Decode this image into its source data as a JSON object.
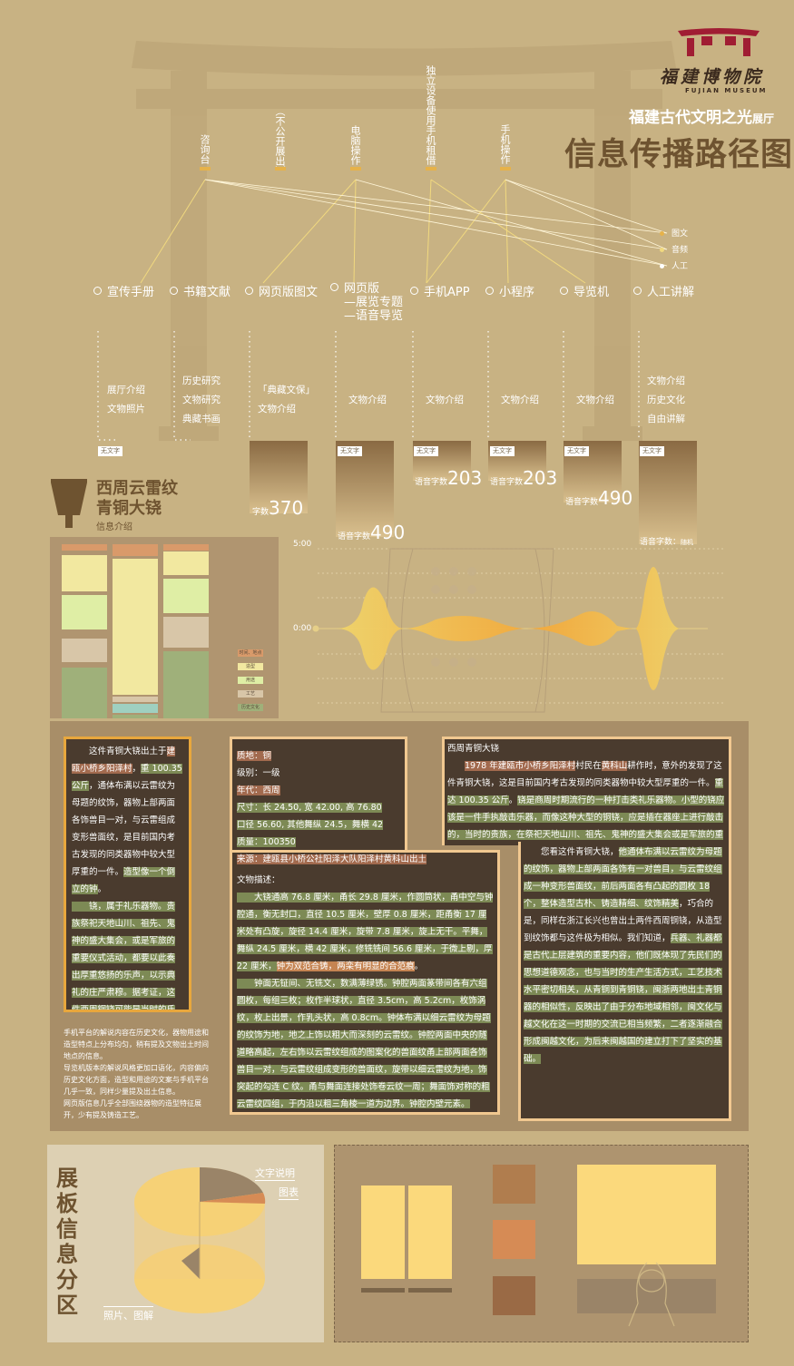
{
  "brand": {
    "logo_cn": "福建博物院",
    "logo_en": "FUJIAN MUSEUM",
    "accent": "#a01d33"
  },
  "header": {
    "subtitle": "福建古代文明之光",
    "subtitle_suffix": "展厅",
    "title": "信息传播路径图"
  },
  "sources": [
    {
      "label": "咨询台"
    },
    {
      "label": "（不公开展出）"
    },
    {
      "label": "电脑操作"
    },
    {
      "label": "独立设备使用手机租借"
    },
    {
      "label": "手机操作"
    }
  ],
  "legend": [
    {
      "label": "图文",
      "color": "#e6b24a"
    },
    {
      "label": "音频",
      "color": "#f1d97f"
    },
    {
      "label": "人工",
      "color": "#ffffff"
    }
  ],
  "channels": [
    {
      "label": "宣传手册",
      "details": [
        "展厅介绍",
        "文物照片"
      ],
      "badge": "无文字",
      "count_label": "",
      "count": ""
    },
    {
      "label": "书籍文献",
      "details": [
        "历史研究",
        "文物研究",
        "典藏书画"
      ],
      "badge": "",
      "count_label": "",
      "count": ""
    },
    {
      "label": "网页版图文",
      "details": [
        "「典藏文保」",
        "文物介绍"
      ],
      "badge": "",
      "count_label": "字数",
      "count": "370"
    },
    {
      "label": "网页版",
      "label2": "—展览专题",
      "label3": "—语音导览",
      "details": [
        "文物介绍"
      ],
      "badge": "无文字",
      "count_label": "语音字数",
      "count": "490"
    },
    {
      "label": "手机APP",
      "details": [
        "文物介绍"
      ],
      "badge": "无文字",
      "count_label": "语音字数",
      "count": "203"
    },
    {
      "label": "小程序",
      "details": [
        "文物介绍"
      ],
      "badge": "无文字",
      "count_label": "语音字数",
      "count": "203"
    },
    {
      "label": "导览机",
      "details": [
        "文物介绍"
      ],
      "badge": "无文字",
      "count_label": "语音字数",
      "count": "490"
    },
    {
      "label": "人工讲解",
      "details": [
        "文物介绍",
        "历史文化",
        "自由讲解"
      ],
      "badge": "无文字",
      "count_label": "语音字数：",
      "count": "随机"
    }
  ],
  "artifact": {
    "title1": "西周云雷纹",
    "title2": "青铜大铙",
    "sub": "信息介绍"
  },
  "info_legend": [
    "时间、地点",
    "造型",
    "用途",
    "工艺",
    "历史文化"
  ],
  "info_legend_colors": [
    "#d99a6a",
    "#f2e8a0",
    "#dfeea5",
    "#d8c6a8",
    "#9fb07a"
  ],
  "timeline": {
    "top_label": "5:00",
    "mid_label": "0:00"
  },
  "panels": {
    "p1": {
      "parts": [
        {
          "t": "　　这件青铜大铙出土于",
          "c": ""
        },
        {
          "t": "建瓯小桥乡阳泽村",
          "c": "hl-red"
        },
        {
          "t": "，",
          "c": ""
        },
        {
          "t": "重 100.35 公斤",
          "c": "hl-green"
        },
        {
          "t": "，通体布满以云雷纹为母题的纹饰，器物上部两面各饰兽目一对，与云雷组成变形兽面纹，是目前国内考古发现的同类器物中较大型厚重的一件。",
          "c": ""
        },
        {
          "t": "造型像一个倒立的钟",
          "c": "hl-green"
        },
        {
          "t": "。",
          "c": ""
        },
        {
          "t": "　　铙，属于礼乐器物。贵族祭祀天地山川、祖先、鬼神的盛大集会，或是军旅的重要仪式活动，都要以此奏出厚重悠扬的乐声，以示典礼的庄严肃穆。据考证，这件西周铜铙可能是当时的氏族部落举行祭祀仪式之后就地埋藏的遗物，就地埋葬这样的重器，是当时祭地礼仪的重要形式之一。",
          "c": "hl-green"
        }
      ]
    },
    "p2": {
      "lines": [
        {
          "t": "质地：铜",
          "c": "hl-red"
        },
        {
          "t": "级别：一级",
          "c": ""
        },
        {
          "t": "年代：西周",
          "c": "hl-red"
        },
        {
          "t": "尺寸：长 24.50, 宽 42.00, 高 76.80",
          "c": "hl-green"
        },
        {
          "t": "口径 56.60, 其他舞纵 24.5，舞横 42",
          "c": "hl-green"
        },
        {
          "t": "质量：100350",
          "c": "hl-green"
        },
        {
          "t": "来源：建瓯县小桥公社阳泽大队阳泽村黄科山出土",
          "c": "hl-red"
        }
      ],
      "desc_title": "文物描述：",
      "desc": [
        {
          "t": "　　大铙通高 76.8 厘米，甬长 29.8 厘米，作圆筒状，甬中空与钟腔通，衡无封口，直径 10.5 厘米，壁厚 0.8 厘米，距甬衡 17 厘米处有凸旋，旋径 14.4 厘米，旋带 7.8 厘米，旋上无干。平舞，舞纵 24.5 厘米，横 42 厘米，修铣铣间 56.6 厘米，于微上剔，厚 22 厘米，",
          "c": "hl-green"
        },
        {
          "t": "钟为双范合铸，两栾有明显的合范痕",
          "c": "hl-orange"
        },
        {
          "t": "。",
          "c": ""
        },
        {
          "t": "　　钟面无钲间、无铣文，数满薄绿锈。钟腔两面篆带间各有六组圆枚，每组三枚；枚作半球状，直径 3.5cm，高 5.2cm，枚饰涡纹，枚上出景，作乳头状，高 0.8cm。钟体布满以细云雷纹为母题的纹饰为地，地之上饰以粗大而深刻的云雷纹。钟腔两面中央的隧道略高起，左右饰以云雷纹组成的图案化的兽面纹甬上部两面各饰兽目一对，与云雷纹组成变形的兽面纹，旋带以细云雷纹为地，饰突起的勾连 C 纹。甬与舞面连接处饰卷云纹一周；舞面饰对称的粗云雷纹四组，于内沿以粗三角棱一道为边界。钟腔内壁元素。",
          "c": "hl-green"
        }
      ]
    },
    "p3": {
      "heading": "西周青铜大铙",
      "parts": [
        {
          "t": "　　",
          "c": ""
        },
        {
          "t": "1978 年建瓯市小桥乡阳泽村",
          "c": "hl-red"
        },
        {
          "t": "村民在",
          "c": ""
        },
        {
          "t": "黄科山",
          "c": "hl-red"
        },
        {
          "t": "耕作时，意外的发现了这件青铜大铙，这是目前国内考古发现的同类器物中较大型厚重的一件。",
          "c": ""
        },
        {
          "t": "重达 100.35 公斤",
          "c": "hl-green"
        },
        {
          "t": "。",
          "c": ""
        },
        {
          "t": "铙是商周时期流行的一种打击类礼乐器物。小型的铙应该是一件手执敲击乐器，而像这种大型的铜铙，应是插在器座上进行敲击的，当时的贵族，在祭祀天地山川、祖先、鬼神的盛大集会或是军旅的重要仪式活动中，都要以此奏出厚重悠扬的乐声，以示典礼的庄严肃穆。据考证，这件西周铜铙可能是当时的氏族部落举行祭祀仪式之后就地埋藏的遗物，而像这样就地埋葬重器的行为，则是当时祭地礼仪的重要形式之一。",
          "c": "hl-green"
        },
        {
          "t": "　　您看这件青铜大铙，",
          "c": ""
        },
        {
          "t": "他通体布满以云雷纹为母题的纹饰，器物上部两面各饰有一对兽目，与云雷纹组成一种变形兽面纹，前后两面各有凸起的圆枚 18 个，整体造型古朴、铸造精细、纹饰精美",
          "c": "hl-green"
        },
        {
          "t": "，巧合的是，同样在浙江长兴也曾出土两件西周铜铙，从造型到纹饰都与这件极为相似。我们知道，",
          "c": ""
        },
        {
          "t": "兵器、礼器都是古代上层建筑的重要内容，他们既体现了先民们的思想道德观念，也与当时的生产生活方式，工艺技术水平密切相关，从青铜到青铜铙，闽浙两地出土青铜器的相似性，反映出了由于分布地域相邻，闽文化与越文化在这一时期的交流已相当频繁，二者逐渐融合形成闽越文化，为后来闽越国的建立打下了坚实的基础。",
          "c": "hl-green"
        }
      ]
    }
  },
  "notes": [
    "手机平台的解说内容在历史文化，器物用途和造型特点上分布均匀，稍有提及文物出土时间地点的信息。",
    "导览机版本的解说风格更加口语化，内容偏向历史文化方面，造型和用途的文案与手机平台几乎一致，同样少量提及出土信息。",
    "网页版信息几乎全部围绕器物的造型特征展开，少有提及铸造工艺。"
  ],
  "zone": {
    "title": "展板信息分区",
    "label_text": "文字说明",
    "label_chart": "图表",
    "label_photo": "照片、图解"
  }
}
